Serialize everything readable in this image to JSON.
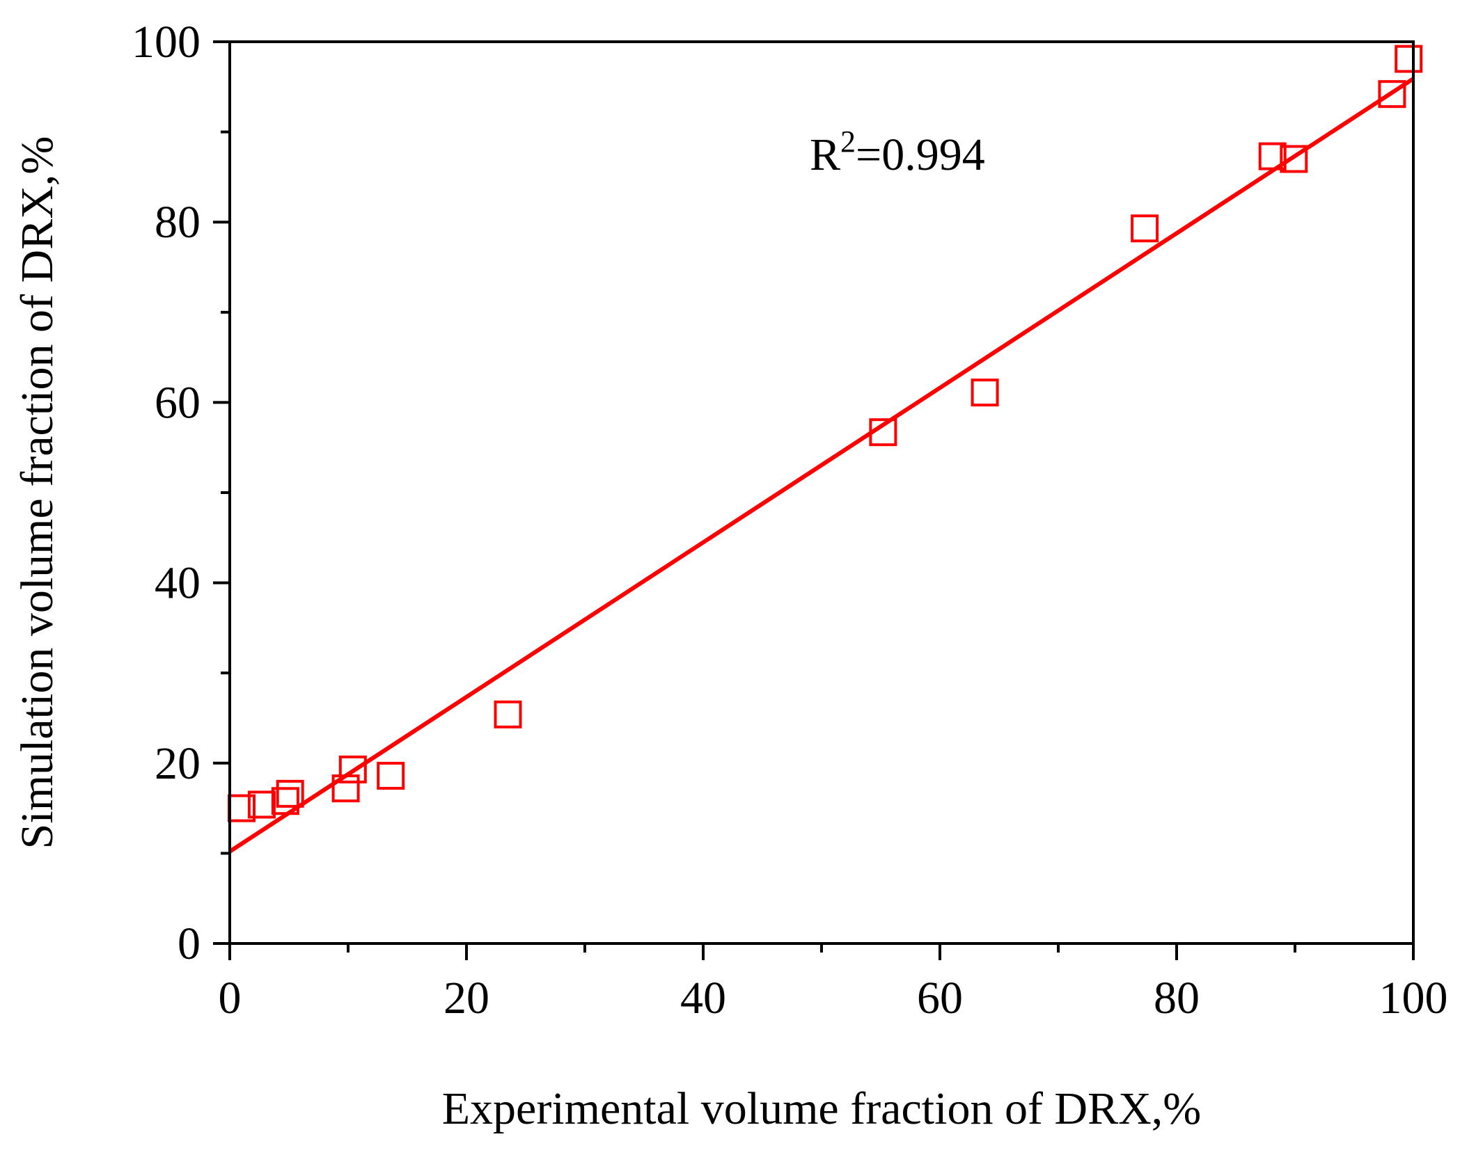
{
  "chart_data": {
    "type": "scatter",
    "xlabel": "Experimental volume fraction of DRX,%",
    "ylabel": "Simulation volume fraction of DRX,%",
    "xlim": [
      0,
      100
    ],
    "ylim": [
      0,
      100
    ],
    "xticks": [
      0,
      20,
      40,
      60,
      80,
      100
    ],
    "yticks": [
      0,
      20,
      40,
      60,
      80,
      100
    ],
    "xtick_labels": [
      "0",
      "20",
      "40",
      "60",
      "80",
      "100"
    ],
    "ytick_labels": [
      "0",
      "20",
      "40",
      "60",
      "80",
      "100"
    ],
    "grid": false,
    "legend": "none",
    "annotation": {
      "base": "R",
      "superscript": "2",
      "rest": "=0.994",
      "x": 49,
      "y": 87.5
    },
    "series": [
      {
        "marker": "open-square",
        "color": "#ff0000",
        "points": [
          {
            "x": 1.0,
            "y": 15.0
          },
          {
            "x": 2.7,
            "y": 15.4
          },
          {
            "x": 4.7,
            "y": 15.8
          },
          {
            "x": 5.1,
            "y": 16.6
          },
          {
            "x": 9.8,
            "y": 17.2
          },
          {
            "x": 10.4,
            "y": 19.3
          },
          {
            "x": 13.6,
            "y": 18.6
          },
          {
            "x": 23.5,
            "y": 25.4
          },
          {
            "x": 55.2,
            "y": 56.7
          },
          {
            "x": 63.8,
            "y": 61.1
          },
          {
            "x": 77.3,
            "y": 79.3
          },
          {
            "x": 88.1,
            "y": 87.3
          },
          {
            "x": 89.9,
            "y": 87.0
          },
          {
            "x": 98.2,
            "y": 94.2
          },
          {
            "x": 99.6,
            "y": 98.1
          }
        ]
      }
    ],
    "fit_line": {
      "color": "#ff0000",
      "slope": 0.857,
      "intercept": 10.2,
      "x_range": [
        0,
        100
      ]
    }
  }
}
